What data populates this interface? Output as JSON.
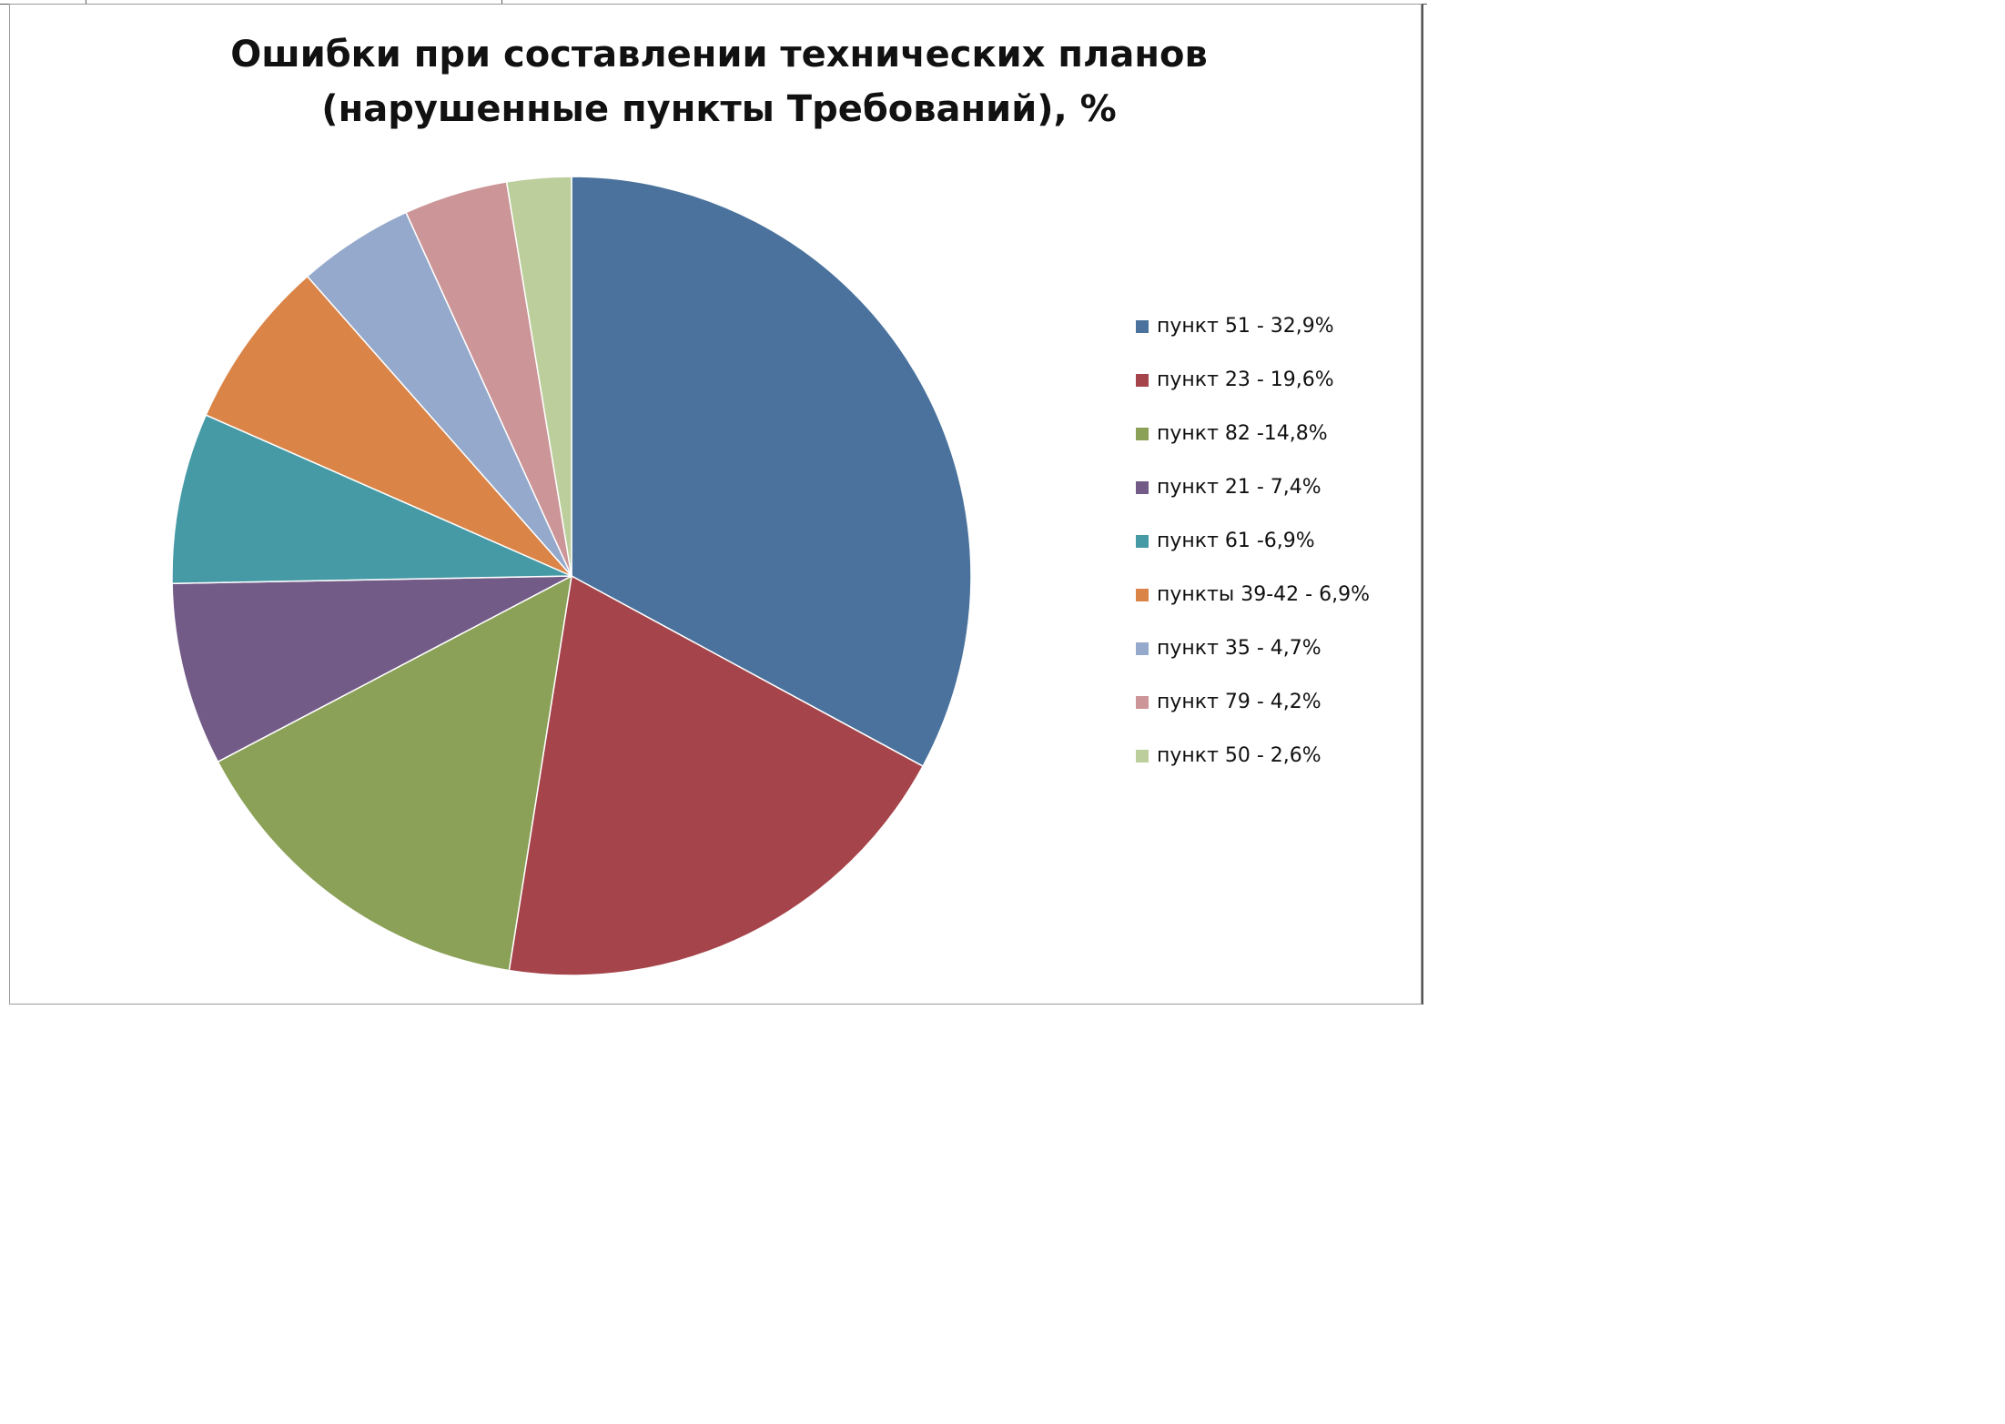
{
  "chart_data": {
    "type": "pie",
    "title_lines": [
      "Ошибки при составлении технических планов",
      "(нарушенные пункты Требований), %"
    ],
    "legend_position": "right",
    "slices": [
      {
        "label": "пункт 51 - 32,9%",
        "value": 32.9,
        "color": "#4A729C"
      },
      {
        "label": "пункт 23 - 19,6%",
        "value": 19.6,
        "color": "#A5444A"
      },
      {
        "label": "пункт 82 -14,8%",
        "value": 14.8,
        "color": "#8BA157"
      },
      {
        "label": "пункт 21 - 7,4%",
        "value": 7.4,
        "color": "#735B88"
      },
      {
        "label": "пункт 61 -6,9%",
        "value": 6.9,
        "color": "#459AA6"
      },
      {
        "label": "пункты 39-42 - 6,9%",
        "value": 6.9,
        "color": "#DA8447"
      },
      {
        "label": "пункт 35 - 4,7%",
        "value": 4.7,
        "color": "#94A9CB"
      },
      {
        "label": "пункт 79 - 4,2%",
        "value": 4.2,
        "color": "#CC9597"
      },
      {
        "label": "пункт 50 - 2,6%",
        "value": 2.6,
        "color": "#BCCE9C"
      }
    ]
  }
}
